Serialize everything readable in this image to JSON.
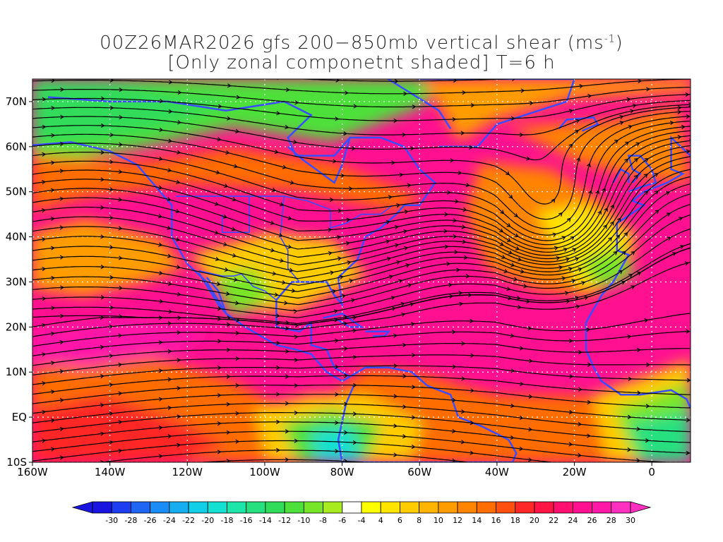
{
  "title": {
    "line1_prefix": "00Z26MAR2026 gfs 200−850mb vertical shear (ms",
    "line1_sup": "-1",
    "line1_suffix": ")",
    "line2": "[Only zonal componetnt shaded] T=6 h"
  },
  "map": {
    "lon_range": [
      -160,
      10
    ],
    "lat_range": [
      -10,
      75
    ],
    "lat_ticks": [
      "70N",
      "60N",
      "50N",
      "40N",
      "30N",
      "20N",
      "10N",
      "EQ",
      "10S"
    ],
    "lat_tick_values": [
      70,
      60,
      50,
      40,
      30,
      20,
      10,
      0,
      -10
    ],
    "lon_ticks": [
      "160W",
      "140W",
      "120W",
      "100W",
      "80W",
      "60W",
      "40W",
      "20W",
      "0"
    ],
    "lon_tick_values": [
      -160,
      -140,
      -120,
      -100,
      -80,
      -60,
      -40,
      -20,
      0
    ],
    "streamline_color": "#000000",
    "coastline_color": "#3a4cff",
    "border_color": "#8a1a9a"
  },
  "colorbar": {
    "labels": [
      "-30",
      "-28",
      "-26",
      "-24",
      "-22",
      "-20",
      "-18",
      "-16",
      "-14",
      "-12",
      "-10",
      "-8",
      "-6",
      "-4",
      "4",
      "6",
      "8",
      "10",
      "12",
      "14",
      "16",
      "18",
      "20",
      "22",
      "24",
      "26",
      "28",
      "30"
    ],
    "colors": [
      "#1a14e0",
      "#1f3df0",
      "#1f66f5",
      "#1a8cf5",
      "#17aef0",
      "#12cfe8",
      "#13e0d0",
      "#1ee6a8",
      "#26e080",
      "#30dc5a",
      "#4ee03a",
      "#78e628",
      "#a8ec20",
      "#ffffff",
      "#ffff00",
      "#ffe400",
      "#ffcc00",
      "#ffb400",
      "#ff9c00",
      "#ff8400",
      "#ff6c00",
      "#ff5010",
      "#ff2828",
      "#ff1446",
      "#ff1070",
      "#ff1090",
      "#ff18a8",
      "#ff30c0"
    ]
  }
}
